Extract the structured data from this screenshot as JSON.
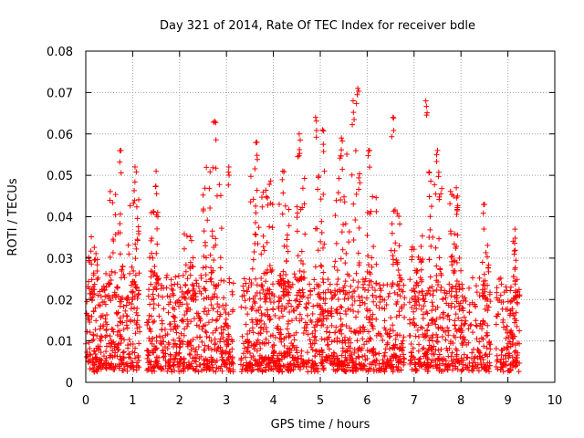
{
  "chart_data": {
    "type": "scatter",
    "title": "Day 321 of 2014, Rate Of TEC Index for receiver bdle",
    "xlabel": "GPS time / hours",
    "ylabel": "ROTI / TECUs",
    "xlim": [
      0,
      10
    ],
    "ylim": [
      0,
      0.08
    ],
    "x_ticks": [
      "0",
      "1",
      "2",
      "3",
      "4",
      "5",
      "6",
      "7",
      "8",
      "9",
      "10"
    ],
    "y_ticks": [
      "0",
      "0.01",
      "0.02",
      "0.03",
      "0.04",
      "0.05",
      "0.06",
      "0.07",
      "0.08"
    ],
    "grid": true,
    "marker": "+",
    "color": "#ff0000",
    "series": [
      {
        "name": "ROTI",
        "x_range_hours": [
          0.0,
          9.25
        ],
        "typical_range": [
          0.003,
          0.025
        ],
        "notable_peaks": [
          {
            "x": 0.75,
            "y": 0.056
          },
          {
            "x": 1.05,
            "y": 0.052
          },
          {
            "x": 1.5,
            "y": 0.051
          },
          {
            "x": 2.75,
            "y": 0.063
          },
          {
            "x": 3.05,
            "y": 0.052
          },
          {
            "x": 3.65,
            "y": 0.058
          },
          {
            "x": 4.2,
            "y": 0.051
          },
          {
            "x": 4.55,
            "y": 0.06
          },
          {
            "x": 4.9,
            "y": 0.064
          },
          {
            "x": 5.05,
            "y": 0.061
          },
          {
            "x": 5.45,
            "y": 0.059
          },
          {
            "x": 5.7,
            "y": 0.068
          },
          {
            "x": 5.8,
            "y": 0.071
          },
          {
            "x": 6.05,
            "y": 0.056
          },
          {
            "x": 6.55,
            "y": 0.064
          },
          {
            "x": 7.25,
            "y": 0.068
          },
          {
            "x": 7.5,
            "y": 0.056
          },
          {
            "x": 7.9,
            "y": 0.047
          },
          {
            "x": 8.5,
            "y": 0.043
          },
          {
            "x": 9.15,
            "y": 0.037
          }
        ],
        "elevated_bursts": [
          {
            "x_start": 0.05,
            "x_end": 0.25,
            "y_max": 0.036
          },
          {
            "x_start": 0.5,
            "x_end": 0.8,
            "y_max": 0.047
          },
          {
            "x_start": 0.9,
            "x_end": 1.15,
            "y_max": 0.049
          },
          {
            "x_start": 1.35,
            "x_end": 1.55,
            "y_max": 0.042
          },
          {
            "x_start": 2.1,
            "x_end": 2.3,
            "y_max": 0.036
          },
          {
            "x_start": 2.5,
            "x_end": 2.9,
            "y_max": 0.052
          },
          {
            "x_start": 3.5,
            "x_end": 4.0,
            "y_max": 0.052
          },
          {
            "x_start": 4.1,
            "x_end": 4.35,
            "y_max": 0.045
          },
          {
            "x_start": 4.5,
            "x_end": 4.7,
            "y_max": 0.057
          },
          {
            "x_start": 4.9,
            "x_end": 5.1,
            "y_max": 0.052
          },
          {
            "x_start": 5.3,
            "x_end": 5.85,
            "y_max": 0.056
          },
          {
            "x_start": 6.0,
            "x_end": 6.2,
            "y_max": 0.046
          },
          {
            "x_start": 6.5,
            "x_end": 6.7,
            "y_max": 0.042
          },
          {
            "x_start": 6.95,
            "x_end": 7.2,
            "y_max": 0.036
          },
          {
            "x_start": 7.3,
            "x_end": 7.6,
            "y_max": 0.052
          },
          {
            "x_start": 7.75,
            "x_end": 8.0,
            "y_max": 0.047
          },
          {
            "x_start": 8.45,
            "x_end": 8.6,
            "y_max": 0.034
          },
          {
            "x_start": 9.1,
            "x_end": 9.2,
            "y_max": 0.037
          }
        ],
        "gaps_hours": [
          [
            1.15,
            1.3
          ],
          [
            3.15,
            3.3
          ],
          [
            6.8,
            6.9
          ],
          [
            8.65,
            8.75
          ]
        ]
      }
    ]
  }
}
